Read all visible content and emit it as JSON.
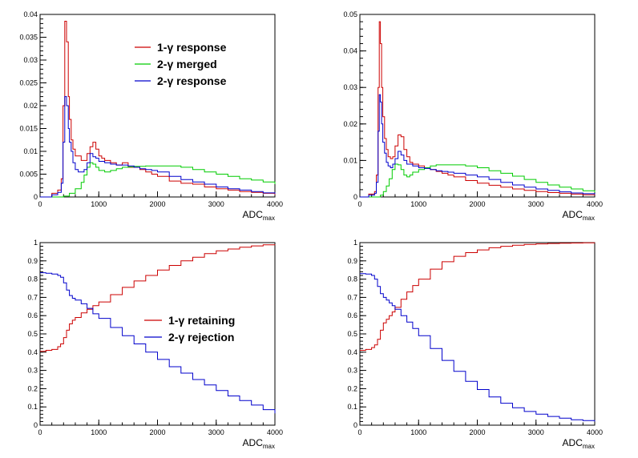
{
  "chart_data": [
    {
      "type": "line",
      "step": true,
      "xlabel": "ADC",
      "xlabel_sub": "max",
      "xlim": [
        0,
        4000
      ],
      "ylim": [
        0,
        0.04
      ],
      "xticks": [
        "0",
        "1000",
        "2000",
        "3000",
        "4000"
      ],
      "yticks": [
        "0",
        "0.005",
        "0.01",
        "0.015",
        "0.02",
        "0.025",
        "0.03",
        "0.035",
        "0.04"
      ],
      "legend_position": "top-right",
      "series": [
        {
          "name": "1-γ response",
          "color": "#cc0000",
          "x": [
            0,
            200,
            300,
            360,
            390,
            420,
            450,
            480,
            500,
            530,
            560,
            600,
            650,
            700,
            750,
            800,
            850,
            900,
            950,
            1000,
            1050,
            1100,
            1200,
            1300,
            1400,
            1500,
            1600,
            1700,
            1800,
            1900,
            2000,
            2200,
            2400,
            2600,
            2800,
            3000,
            3200,
            3400,
            3600,
            3800,
            4000
          ],
          "y": [
            0,
            0.0008,
            0.0015,
            0.004,
            0.02,
            0.0385,
            0.034,
            0.022,
            0.017,
            0.0125,
            0.0105,
            0.009,
            0.009,
            0.008,
            0.008,
            0.0095,
            0.011,
            0.012,
            0.0105,
            0.009,
            0.0085,
            0.008,
            0.0075,
            0.007,
            0.0075,
            0.0065,
            0.0065,
            0.006,
            0.0055,
            0.005,
            0.0045,
            0.0035,
            0.003,
            0.0028,
            0.0022,
            0.0018,
            0.0015,
            0.0012,
            0.001,
            0.0008,
            0.0005
          ]
        },
        {
          "name": "2-γ merged",
          "color": "#00cc00",
          "x": [
            0,
            300,
            400,
            500,
            600,
            700,
            750,
            800,
            850,
            900,
            950,
            1000,
            1100,
            1200,
            1300,
            1400,
            1500,
            1600,
            1800,
            2000,
            2200,
            2400,
            2600,
            2800,
            3000,
            3200,
            3400,
            3600,
            3800,
            4000
          ],
          "y": [
            0,
            0,
            0.0002,
            0.0008,
            0.0018,
            0.0032,
            0.0048,
            0.0065,
            0.0075,
            0.0072,
            0.0065,
            0.0058,
            0.0055,
            0.0058,
            0.0062,
            0.0065,
            0.0066,
            0.0067,
            0.0068,
            0.0068,
            0.0068,
            0.0065,
            0.006,
            0.0055,
            0.005,
            0.0045,
            0.004,
            0.0037,
            0.0033,
            0.0028
          ]
        },
        {
          "name": "2-γ response",
          "color": "#0000cc",
          "x": [
            0,
            200,
            300,
            360,
            390,
            420,
            450,
            480,
            500,
            530,
            560,
            600,
            650,
            700,
            750,
            800,
            850,
            900,
            950,
            1000,
            1100,
            1200,
            1300,
            1400,
            1500,
            1600,
            1700,
            1800,
            1900,
            2000,
            2200,
            2400,
            2600,
            2800,
            3000,
            3200,
            3400,
            3600,
            3800,
            4000
          ],
          "y": [
            0,
            0.0005,
            0.001,
            0.003,
            0.012,
            0.022,
            0.02,
            0.015,
            0.012,
            0.01,
            0.0075,
            0.006,
            0.0055,
            0.0055,
            0.006,
            0.0075,
            0.0095,
            0.0088,
            0.0085,
            0.0078,
            0.0075,
            0.0072,
            0.007,
            0.007,
            0.0068,
            0.0065,
            0.0062,
            0.006,
            0.0058,
            0.0055,
            0.0045,
            0.0038,
            0.0033,
            0.0028,
            0.0022,
            0.0018,
            0.0015,
            0.0012,
            0.0009,
            0.0007
          ]
        }
      ]
    },
    {
      "type": "line",
      "step": true,
      "xlabel": "ADC",
      "xlabel_sub": "max",
      "xlim": [
        0,
        4000
      ],
      "ylim": [
        0,
        0.05
      ],
      "xticks": [
        "0",
        "1000",
        "2000",
        "3000",
        "4000"
      ],
      "yticks": [
        "0",
        "0.01",
        "0.02",
        "0.03",
        "0.04",
        "0.05"
      ],
      "series": [
        {
          "name": "1-γ response",
          "color": "#cc0000",
          "x": [
            0,
            150,
            250,
            280,
            310,
            330,
            350,
            370,
            390,
            420,
            450,
            480,
            520,
            560,
            600,
            650,
            700,
            750,
            800,
            850,
            900,
            1000,
            1100,
            1200,
            1300,
            1400,
            1500,
            1600,
            1800,
            2000,
            2200,
            2400,
            2600,
            2800,
            3000,
            3200,
            3400,
            3600,
            3800,
            4000
          ],
          "y": [
            0,
            0.0008,
            0.0015,
            0.006,
            0.03,
            0.048,
            0.042,
            0.03,
            0.022,
            0.016,
            0.013,
            0.011,
            0.0105,
            0.011,
            0.014,
            0.017,
            0.0165,
            0.013,
            0.011,
            0.0095,
            0.009,
            0.0085,
            0.008,
            0.0075,
            0.007,
            0.0065,
            0.006,
            0.0055,
            0.0045,
            0.0038,
            0.0032,
            0.0027,
            0.0022,
            0.0018,
            0.0015,
            0.0012,
            0.001,
            0.0008,
            0.0006,
            0.0005
          ]
        },
        {
          "name": "2-γ merged",
          "color": "#00cc00",
          "x": [
            0,
            250,
            350,
            400,
            450,
            500,
            550,
            600,
            650,
            700,
            750,
            800,
            850,
            900,
            1000,
            1100,
            1200,
            1300,
            1400,
            1500,
            1600,
            1800,
            2000,
            2200,
            2400,
            2600,
            2800,
            3000,
            3200,
            3400,
            3600,
            3800,
            4000
          ],
          "y": [
            0,
            0,
            0.0005,
            0.0015,
            0.003,
            0.005,
            0.0075,
            0.009,
            0.0088,
            0.0075,
            0.006,
            0.0055,
            0.006,
            0.0068,
            0.0075,
            0.008,
            0.0085,
            0.0088,
            0.0088,
            0.0088,
            0.0088,
            0.0085,
            0.008,
            0.0072,
            0.0065,
            0.0057,
            0.0048,
            0.004,
            0.0033,
            0.0027,
            0.0022,
            0.0017,
            0.0013
          ]
        },
        {
          "name": "2-γ response",
          "color": "#0000cc",
          "x": [
            0,
            150,
            250,
            280,
            310,
            330,
            350,
            370,
            390,
            420,
            450,
            480,
            520,
            560,
            600,
            650,
            700,
            750,
            800,
            850,
            900,
            1000,
            1100,
            1200,
            1300,
            1400,
            1500,
            1600,
            1800,
            2000,
            2200,
            2400,
            2600,
            2800,
            3000,
            3200,
            3400,
            3600,
            3800,
            4000
          ],
          "y": [
            0,
            0.0005,
            0.001,
            0.004,
            0.018,
            0.028,
            0.026,
            0.02,
            0.015,
            0.012,
            0.0095,
            0.0085,
            0.008,
            0.009,
            0.0105,
            0.0125,
            0.0115,
            0.01,
            0.009,
            0.009,
            0.0085,
            0.008,
            0.0078,
            0.0075,
            0.0072,
            0.007,
            0.0068,
            0.0065,
            0.006,
            0.0055,
            0.0048,
            0.004,
            0.0033,
            0.0027,
            0.0022,
            0.0018,
            0.0014,
            0.0011,
            0.0009,
            0.0007
          ]
        }
      ]
    },
    {
      "type": "line",
      "step": true,
      "xlabel": "ADC",
      "xlabel_sub": "max",
      "xlim": [
        0,
        4000
      ],
      "ylim": [
        0,
        1
      ],
      "xticks": [
        "0",
        "1000",
        "2000",
        "3000",
        "4000"
      ],
      "yticks": [
        "0",
        "0.1",
        "0.2",
        "0.3",
        "0.4",
        "0.5",
        "0.6",
        "0.7",
        "0.8",
        "0.9",
        "1"
      ],
      "legend_position": "center-right",
      "series": [
        {
          "name": "1-γ retaining",
          "color": "#cc0000",
          "x": [
            0,
            100,
            200,
            300,
            350,
            400,
            450,
            500,
            550,
            600,
            700,
            800,
            900,
            1000,
            1200,
            1400,
            1600,
            1800,
            2000,
            2200,
            2400,
            2600,
            2800,
            3000,
            3200,
            3400,
            3600,
            3800,
            4000
          ],
          "y": [
            0.405,
            0.41,
            0.415,
            0.43,
            0.445,
            0.48,
            0.52,
            0.555,
            0.575,
            0.59,
            0.615,
            0.635,
            0.655,
            0.675,
            0.715,
            0.755,
            0.79,
            0.82,
            0.85,
            0.875,
            0.9,
            0.92,
            0.94,
            0.955,
            0.965,
            0.975,
            0.982,
            0.988,
            0.99
          ]
        },
        {
          "name": "2-γ rejection",
          "color": "#0000cc",
          "x": [
            0,
            100,
            200,
            300,
            350,
            400,
            450,
            500,
            550,
            600,
            700,
            800,
            900,
            1000,
            1200,
            1400,
            1600,
            1800,
            2000,
            2200,
            2400,
            2600,
            2800,
            3000,
            3200,
            3400,
            3600,
            3800,
            4000
          ],
          "y": [
            0.835,
            0.832,
            0.828,
            0.82,
            0.81,
            0.78,
            0.74,
            0.71,
            0.695,
            0.685,
            0.665,
            0.64,
            0.61,
            0.585,
            0.535,
            0.49,
            0.445,
            0.4,
            0.36,
            0.32,
            0.285,
            0.25,
            0.22,
            0.19,
            0.16,
            0.135,
            0.11,
            0.085,
            0.065
          ]
        }
      ]
    },
    {
      "type": "line",
      "step": true,
      "xlabel": "ADC",
      "xlabel_sub": "max",
      "xlim": [
        0,
        4000
      ],
      "ylim": [
        0,
        1
      ],
      "xticks": [
        "0",
        "1000",
        "2000",
        "3000",
        "4000"
      ],
      "yticks": [
        "0",
        "0.1",
        "0.2",
        "0.3",
        "0.4",
        "0.5",
        "0.6",
        "0.7",
        "0.8",
        "0.9",
        "1"
      ],
      "series": [
        {
          "name": "1-γ retaining",
          "color": "#cc0000",
          "x": [
            0,
            100,
            200,
            250,
            300,
            350,
            400,
            450,
            500,
            550,
            600,
            700,
            800,
            900,
            1000,
            1200,
            1400,
            1600,
            1800,
            2000,
            2200,
            2400,
            2600,
            2800,
            3000,
            3200,
            3400,
            3600,
            3800,
            4000
          ],
          "y": [
            0.41,
            0.415,
            0.425,
            0.44,
            0.47,
            0.52,
            0.56,
            0.58,
            0.6,
            0.62,
            0.645,
            0.69,
            0.73,
            0.765,
            0.8,
            0.855,
            0.895,
            0.925,
            0.945,
            0.96,
            0.972,
            0.98,
            0.986,
            0.99,
            0.993,
            0.995,
            0.997,
            0.998,
            0.999,
            1.0
          ]
        },
        {
          "name": "2-γ rejection",
          "color": "#0000cc",
          "x": [
            0,
            100,
            200,
            250,
            300,
            350,
            400,
            450,
            500,
            550,
            600,
            700,
            800,
            900,
            1000,
            1200,
            1400,
            1600,
            1800,
            2000,
            2200,
            2400,
            2600,
            2800,
            3000,
            3200,
            3400,
            3600,
            3800,
            4000
          ],
          "y": [
            0.83,
            0.828,
            0.82,
            0.8,
            0.76,
            0.72,
            0.7,
            0.685,
            0.67,
            0.655,
            0.635,
            0.6,
            0.565,
            0.53,
            0.49,
            0.42,
            0.355,
            0.295,
            0.24,
            0.195,
            0.155,
            0.12,
            0.095,
            0.075,
            0.06,
            0.048,
            0.038,
            0.03,
            0.025,
            0.02
          ]
        }
      ]
    }
  ]
}
